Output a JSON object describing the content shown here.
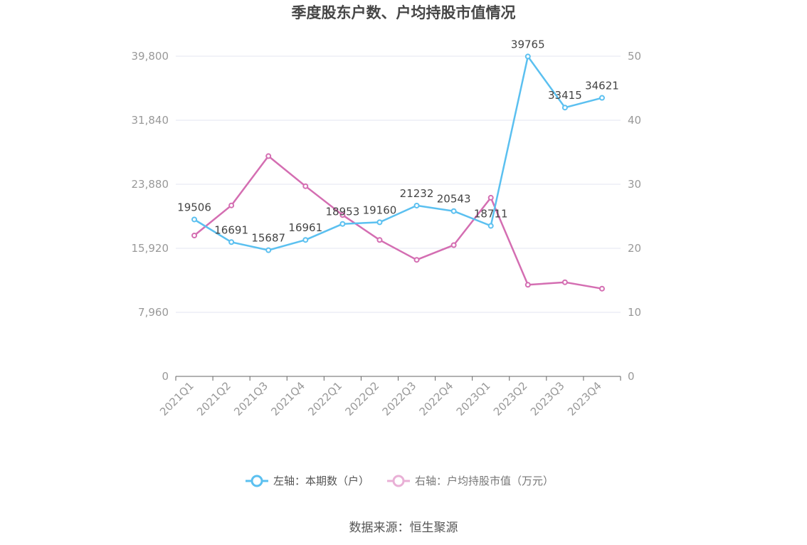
{
  "chart_data": {
    "type": "line",
    "title": "季度股东户数、户均持股市值情况",
    "categories": [
      "2021Q1",
      "2021Q2",
      "2021Q3",
      "2021Q4",
      "2022Q1",
      "2022Q2",
      "2022Q3",
      "2022Q4",
      "2023Q1",
      "2023Q2",
      "2023Q3",
      "2023Q4"
    ],
    "series": [
      {
        "name": "左轴：本期数（户）",
        "axis": "left",
        "color": "#5bc0f0",
        "values": [
          19506,
          16691,
          15687,
          16961,
          18953,
          19160,
          21232,
          20543,
          18711,
          39765,
          33415,
          34621
        ],
        "data_labels": [
          "19506",
          "16691",
          "15687",
          "16961",
          "18953",
          "19160",
          "21232",
          "20543",
          "18711",
          "39765",
          "33415",
          "34621"
        ]
      },
      {
        "name": "右轴：户均持股市值（万元）",
        "axis": "right",
        "color": "#d46eb2",
        "values": [
          22.0,
          26.7,
          34.4,
          29.7,
          25.2,
          21.3,
          18.2,
          20.5,
          27.9,
          14.3,
          14.7,
          13.7
        ]
      }
    ],
    "left_axis": {
      "ylim": [
        0,
        39800
      ],
      "ticks": [
        "0",
        "7,960",
        "15,920",
        "23,880",
        "31,840",
        "39,800"
      ]
    },
    "right_axis": {
      "ylim": [
        0,
        50
      ],
      "ticks": [
        "0",
        "10",
        "20",
        "30",
        "40",
        "50"
      ]
    },
    "grid": true,
    "legend_position": "bottom"
  },
  "source": "数据来源：恒生聚源"
}
